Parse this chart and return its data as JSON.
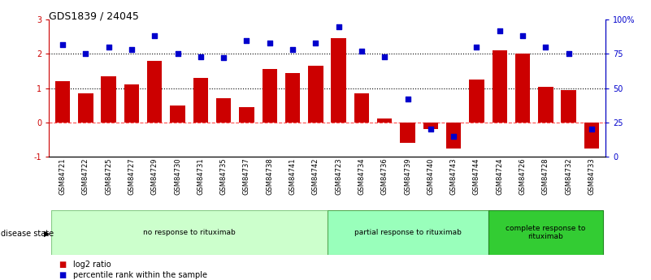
{
  "title": "GDS1839 / 24045",
  "samples": [
    "GSM84721",
    "GSM84722",
    "GSM84725",
    "GSM84727",
    "GSM84729",
    "GSM84730",
    "GSM84731",
    "GSM84735",
    "GSM84737",
    "GSM84738",
    "GSM84741",
    "GSM84742",
    "GSM84723",
    "GSM84734",
    "GSM84736",
    "GSM84739",
    "GSM84740",
    "GSM84743",
    "GSM84744",
    "GSM84724",
    "GSM84726",
    "GSM84728",
    "GSM84732",
    "GSM84733"
  ],
  "log2_ratio": [
    1.2,
    0.85,
    1.35,
    1.1,
    1.8,
    0.5,
    1.3,
    0.7,
    0.45,
    1.55,
    1.45,
    1.65,
    2.45,
    0.85,
    0.12,
    -0.6,
    -0.18,
    -0.75,
    1.25,
    2.1,
    2.0,
    1.05,
    0.95,
    -0.75
  ],
  "percentile": [
    82,
    75,
    80,
    78,
    88,
    75,
    73,
    72,
    85,
    83,
    78,
    83,
    95,
    77,
    73,
    42,
    20,
    15,
    80,
    92,
    88,
    80,
    75,
    20
  ],
  "groups": [
    {
      "label": "no response to rituximab",
      "start": 0,
      "end": 12,
      "color": "#ccffcc",
      "edge": "#88cc88"
    },
    {
      "label": "partial response to rituximab",
      "start": 12,
      "end": 19,
      "color": "#99ffbb",
      "edge": "#55aa55"
    },
    {
      "label": "complete response to\nrituximab",
      "start": 19,
      "end": 24,
      "color": "#33cc33",
      "edge": "#228822"
    }
  ],
  "bar_color": "#cc0000",
  "dot_color": "#0000cc",
  "ylim_left": [
    -1,
    3
  ],
  "ylim_right": [
    0,
    100
  ],
  "yticks_left": [
    -1,
    0,
    1,
    2,
    3
  ],
  "yticks_right": [
    0,
    25,
    50,
    75,
    100
  ],
  "ytick_labels_right": [
    "0",
    "25",
    "50",
    "75",
    "100%"
  ],
  "legend_items": [
    {
      "color": "#cc0000",
      "label": "log2 ratio"
    },
    {
      "color": "#0000cc",
      "label": "percentile rank within the sample"
    }
  ]
}
